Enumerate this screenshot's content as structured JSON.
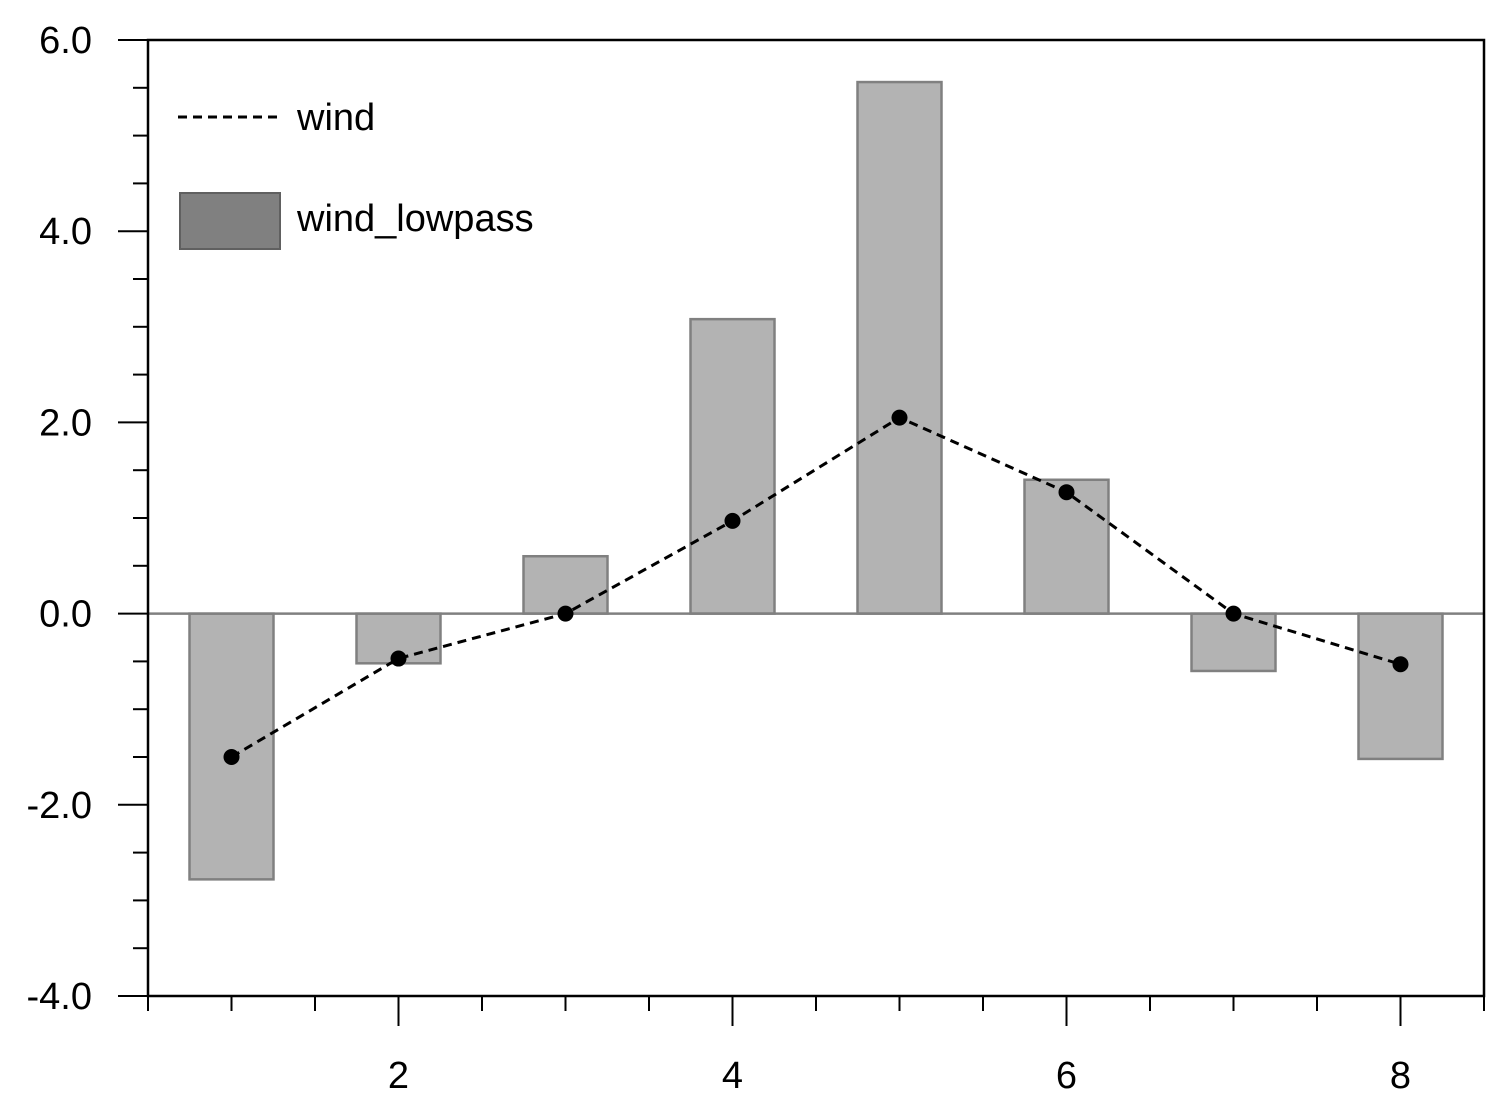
{
  "chart_data": {
    "type": "bar",
    "title": "",
    "xlabel": "",
    "ylabel": "",
    "x": [
      1,
      2,
      3,
      4,
      5,
      6,
      7,
      8
    ],
    "series": [
      {
        "name": "wind",
        "kind": "line",
        "style": "dashed",
        "markers": true,
        "color": "#000000",
        "values": [
          -1.5,
          -0.47,
          0.0,
          0.97,
          2.05,
          1.27,
          0.0,
          -0.53
        ]
      },
      {
        "name": "wind_lowpass",
        "kind": "bar",
        "color": "#b3b3b3",
        "edge_color": "#808080",
        "values": [
          -2.78,
          -0.52,
          0.6,
          3.08,
          5.56,
          1.4,
          -0.6,
          -1.52
        ]
      }
    ],
    "xlim": [
      0.5,
      8.5
    ],
    "ylim": [
      -4.0,
      6.0
    ],
    "x_major_ticks": [
      2,
      4,
      6,
      8
    ],
    "x_tick_labels": [
      "2",
      "4",
      "6",
      "8"
    ],
    "y_major_ticks": [
      -4.0,
      -2.0,
      0.0,
      2.0,
      4.0,
      6.0
    ],
    "y_tick_labels": [
      "-4.0",
      "-2.0",
      "0.0",
      "2.0",
      "4.0",
      "6.0"
    ],
    "reference_line_y": 0.0,
    "grid": false,
    "legend_position": "top-left",
    "legend_swatch_color": "#808080"
  }
}
